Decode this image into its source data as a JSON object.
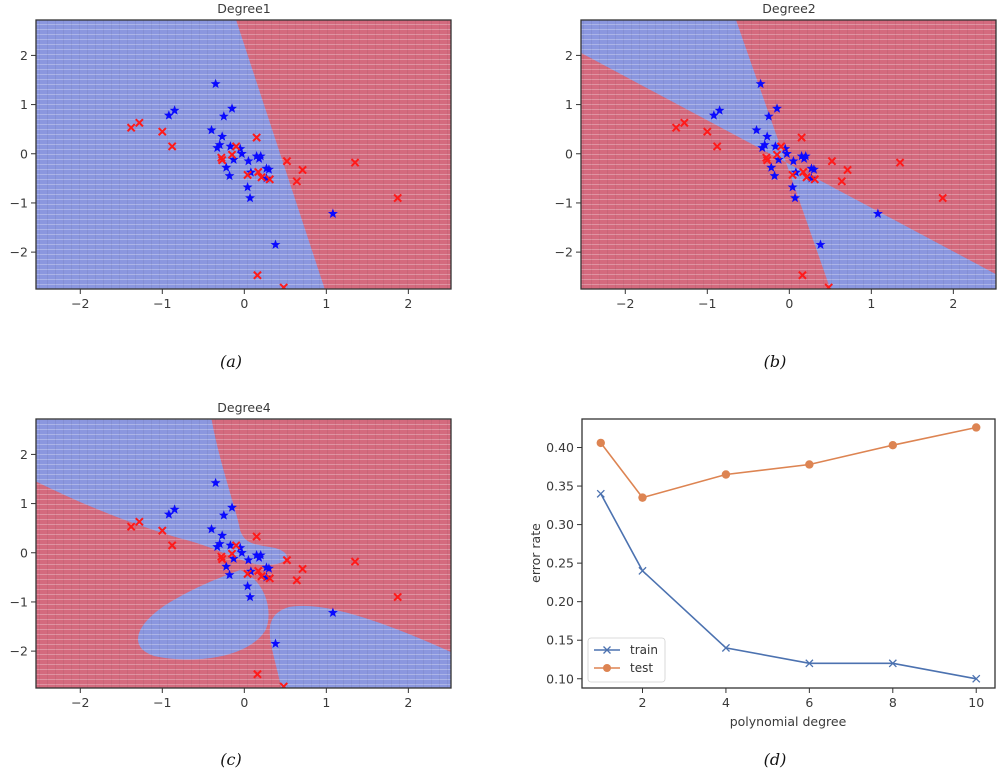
{
  "chart_data": [
    {
      "type": "scatter",
      "panel": "a",
      "caption": "(a)",
      "title": "Degree1",
      "xlim": [
        -2.54,
        2.52
      ],
      "ylim": [
        -2.75,
        2.72
      ],
      "xticks": [
        -2,
        -1,
        0,
        1,
        2
      ],
      "yticks": [
        -2,
        -1,
        0,
        1,
        2
      ],
      "xtick_labels": [
        "−2",
        "−1",
        "0",
        "1",
        "2"
      ],
      "ytick_labels": [
        "−2",
        "−1",
        "0",
        "1",
        "2"
      ],
      "background": "decision-regions",
      "decision_boundary": {
        "degree": 1,
        "boundary_points": [
          [
            -0.1,
            2.72
          ],
          [
            0.98,
            -2.75
          ]
        ],
        "left_class": "blue",
        "right_class": "red"
      },
      "region_colors": {
        "blue": "#8b97df",
        "red": "#d46a7e"
      },
      "series_ref": "points"
    },
    {
      "type": "scatter",
      "panel": "b",
      "caption": "(b)",
      "title": "Degree2",
      "xlim": [
        -2.54,
        2.52
      ],
      "ylim": [
        -2.75,
        2.72
      ],
      "xticks": [
        -2,
        -1,
        0,
        1,
        2
      ],
      "yticks": [
        -2,
        -1,
        0,
        1,
        2
      ],
      "xtick_labels": [
        "−2",
        "−1",
        "0",
        "1",
        "2"
      ],
      "ytick_labels": [
        "−2",
        "−1",
        "0",
        "1",
        "2"
      ],
      "background": "decision-regions",
      "decision_boundary": {
        "degree": 2,
        "description": "two crossing lines forming blue X-shaped band",
        "line1": [
          [
            -0.65,
            2.72
          ],
          [
            0.5,
            -2.75
          ]
        ],
        "line2": [
          [
            -2.54,
            2.05
          ],
          [
            2.52,
            -2.45
          ]
        ],
        "band_width": 0.0
      },
      "region_colors": {
        "blue": "#8b97df",
        "red": "#d46a7e"
      },
      "series_ref": "points"
    },
    {
      "type": "scatter",
      "panel": "c",
      "caption": "(c)",
      "title": "Degree4",
      "xlim": [
        -2.54,
        2.52
      ],
      "ylim": [
        -2.75,
        2.72
      ],
      "xticks": [
        -2,
        -1,
        0,
        1,
        2
      ],
      "yticks": [
        -2,
        -1,
        0,
        1,
        2
      ],
      "xtick_labels": [
        "−2",
        "−1",
        "0",
        "1",
        "2"
      ],
      "ytick_labels": [
        "−2",
        "−1",
        "0",
        "1",
        "2"
      ],
      "background": "decision-regions",
      "decision_boundary": {
        "degree": 4,
        "description": "curved blue lobes: upper-left wedge, lower-left ellipse, lower-right lobe"
      },
      "region_colors": {
        "blue": "#8b97df",
        "red": "#d46a7e"
      },
      "series_ref": "points"
    },
    {
      "type": "line",
      "panel": "d",
      "caption": "(d)",
      "title": "",
      "xlabel": "polynomial degree",
      "ylabel": "error rate",
      "x": [
        1,
        2,
        4,
        6,
        8,
        10
      ],
      "xlim": [
        0.55,
        10.45
      ],
      "ylim": [
        0.088,
        0.437
      ],
      "xticks": [
        2,
        4,
        6,
        8,
        10
      ],
      "yticks": [
        0.1,
        0.15,
        0.2,
        0.25,
        0.3,
        0.35,
        0.4
      ],
      "xtick_labels": [
        "2",
        "4",
        "6",
        "8",
        "10"
      ],
      "ytick_labels": [
        "0.10",
        "0.15",
        "0.20",
        "0.25",
        "0.30",
        "0.35",
        "0.40"
      ],
      "grid": false,
      "legend": "bottom-left",
      "series": [
        {
          "name": "train",
          "marker": "x",
          "color": "#4c72b0",
          "values": [
            0.34,
            0.24,
            0.14,
            0.12,
            0.12,
            0.1
          ]
        },
        {
          "name": "test",
          "marker": "o",
          "color": "#dd8452",
          "values": [
            0.406,
            0.335,
            0.365,
            0.378,
            0.403,
            0.426
          ]
        }
      ]
    }
  ],
  "points": {
    "blue_star": {
      "color": "#0a0aff",
      "marker": "star",
      "xy": [
        [
          -0.35,
          1.42
        ],
        [
          -0.92,
          0.78
        ],
        [
          -0.85,
          0.88
        ],
        [
          -0.15,
          0.92
        ],
        [
          -0.25,
          0.76
        ],
        [
          -0.4,
          0.48
        ],
        [
          -0.27,
          0.35
        ],
        [
          -0.3,
          0.18
        ],
        [
          -0.33,
          0.12
        ],
        [
          -0.17,
          0.15
        ],
        [
          -0.05,
          0.1
        ],
        [
          -0.03,
          0.0
        ],
        [
          0.15,
          -0.05
        ],
        [
          0.18,
          -0.1
        ],
        [
          0.2,
          -0.05
        ],
        [
          -0.22,
          -0.28
        ],
        [
          -0.18,
          -0.45
        ],
        [
          -0.13,
          -0.12
        ],
        [
          0.05,
          -0.15
        ],
        [
          0.08,
          -0.38
        ],
        [
          0.27,
          -0.3
        ],
        [
          0.3,
          -0.32
        ],
        [
          0.27,
          -0.5
        ],
        [
          0.04,
          -0.68
        ],
        [
          0.07,
          -0.9
        ],
        [
          1.08,
          -1.22
        ],
        [
          0.38,
          -1.85
        ]
      ]
    },
    "red_x": {
      "color": "#ff1a1a",
      "marker": "x",
      "xy": [
        [
          -1.38,
          0.53
        ],
        [
          -1.28,
          0.63
        ],
        [
          -1.0,
          0.45
        ],
        [
          -0.88,
          0.15
        ],
        [
          0.15,
          0.33
        ],
        [
          -0.1,
          0.15
        ],
        [
          -0.28,
          -0.08
        ],
        [
          -0.27,
          -0.13
        ],
        [
          -0.15,
          -0.02
        ],
        [
          0.04,
          -0.43
        ],
        [
          0.17,
          -0.37
        ],
        [
          0.21,
          -0.48
        ],
        [
          0.31,
          -0.52
        ],
        [
          0.52,
          -0.15
        ],
        [
          0.71,
          -0.33
        ],
        [
          0.64,
          -0.56
        ],
        [
          1.35,
          -0.18
        ],
        [
          1.87,
          -0.9
        ],
        [
          0.16,
          -2.47
        ],
        [
          0.48,
          -2.72
        ]
      ]
    }
  }
}
